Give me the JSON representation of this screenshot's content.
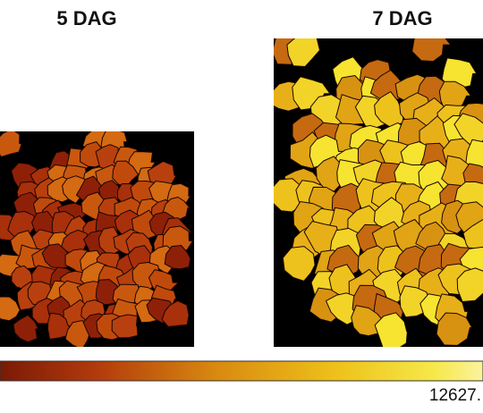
{
  "panels": [
    {
      "title": "5 DAG"
    },
    {
      "title": "7 DAG"
    }
  ],
  "colorbar": {
    "max_label": "12627."
  }
}
